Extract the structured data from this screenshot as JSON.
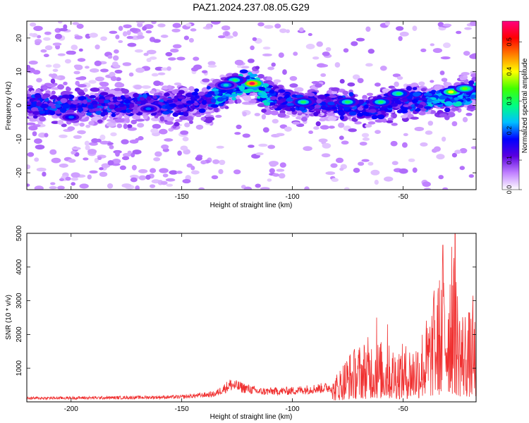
{
  "figure_title": "PAZ1.2024.237.08.05.G29",
  "chart_data": [
    {
      "type": "heatmap",
      "title": "PAZ1.2024.237.08.05.G29",
      "xlabel": "Height of straight line (km)",
      "ylabel": "Frequency (Hz)",
      "xlim": [
        -220,
        -17
      ],
      "ylim": [
        -25,
        25
      ],
      "xticks": [
        -200,
        -150,
        -100,
        -50
      ],
      "yticks": [
        -20,
        -10,
        0,
        10,
        20
      ],
      "colorbar": {
        "label": "Normalized spectral amplitude",
        "range": [
          0,
          0.57
        ],
        "ticks": [
          0.0,
          0.1,
          0.2,
          0.3,
          0.4,
          0.5
        ],
        "colormap": [
          "#ffffff",
          "#c080ff",
          "#5a00e0",
          "#0000ff",
          "#00c0ff",
          "#00ff80",
          "#40ff00",
          "#ffff00",
          "#ff8000",
          "#ff0000",
          "#ff0080"
        ]
      },
      "ridge": {
        "description_points_km_hz": [
          [
            -220,
            0
          ],
          [
            -180,
            0
          ],
          [
            -150,
            0.5
          ],
          [
            -135,
            2
          ],
          [
            -125,
            6
          ],
          [
            -118,
            6.5
          ],
          [
            -112,
            3
          ],
          [
            -100,
            1
          ],
          [
            -85,
            0.5
          ],
          [
            -75,
            0
          ],
          [
            -65,
            -1
          ],
          [
            -55,
            1
          ],
          [
            -40,
            1.5
          ],
          [
            -25,
            2.5
          ],
          [
            -17,
            4
          ]
        ],
        "width_hz": 4
      },
      "hotspots": [
        {
          "x": -118,
          "y": 6.5,
          "amp": 0.55
        },
        {
          "x": -126,
          "y": 7.5,
          "amp": 0.3
        },
        {
          "x": -130,
          "y": 6.0,
          "amp": 0.25
        },
        {
          "x": -95,
          "y": 1.0,
          "amp": 0.3
        },
        {
          "x": -75,
          "y": 1.0,
          "amp": 0.3
        },
        {
          "x": -60,
          "y": 1.0,
          "amp": 0.3
        },
        {
          "x": -52,
          "y": 3.5,
          "amp": 0.3
        },
        {
          "x": -28,
          "y": 4.0,
          "amp": 0.4
        },
        {
          "x": -22,
          "y": 5.0,
          "amp": 0.35
        },
        {
          "x": -200,
          "y": -3.5,
          "amp": 0.2
        },
        {
          "x": -165,
          "y": -1.0,
          "amp": 0.2
        }
      ]
    },
    {
      "type": "line",
      "xlabel": "Height of straight line (km)",
      "ylabel": "SNR (10 * v/v)",
      "xlim": [
        -220,
        -17
      ],
      "ylim": [
        0,
        5000
      ],
      "xticks": [
        -200,
        -150,
        -100,
        -50
      ],
      "yticks": [
        1000,
        2000,
        3000,
        4000,
        5000
      ],
      "color": "#f03030",
      "profile_envelope": [
        {
          "x": -220,
          "y": 150
        },
        {
          "x": -180,
          "y": 170
        },
        {
          "x": -150,
          "y": 200
        },
        {
          "x": -135,
          "y": 320
        },
        {
          "x": -128,
          "y": 700
        },
        {
          "x": -115,
          "y": 420
        },
        {
          "x": -100,
          "y": 450
        },
        {
          "x": -82,
          "y": 600
        },
        {
          "x": -75,
          "y": 1400
        },
        {
          "x": -65,
          "y": 1900
        },
        {
          "x": -55,
          "y": 1600
        },
        {
          "x": -45,
          "y": 1700
        },
        {
          "x": -38,
          "y": 2600
        },
        {
          "x": -32,
          "y": 4000
        },
        {
          "x": -28,
          "y": 4600
        },
        {
          "x": -24,
          "y": 2800
        },
        {
          "x": -17,
          "y": 2500
        }
      ],
      "peaks": [
        {
          "x": -26.5,
          "y": 5000
        },
        {
          "x": -32.0,
          "y": 4650
        },
        {
          "x": -28.0,
          "y": 4600
        },
        {
          "x": -18.5,
          "y": 3150
        },
        {
          "x": -36.0,
          "y": 3300
        },
        {
          "x": -62.0,
          "y": 2500
        },
        {
          "x": -57.0,
          "y": 2300
        }
      ]
    }
  ]
}
